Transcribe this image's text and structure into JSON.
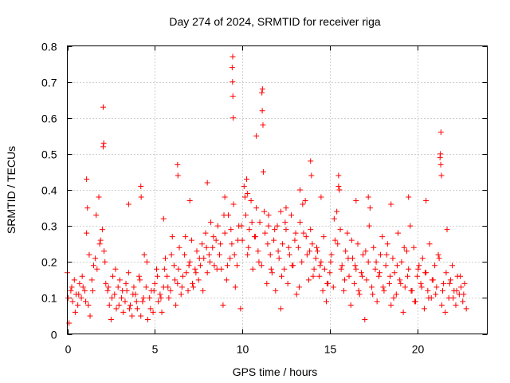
{
  "chart_data": {
    "type": "scatter",
    "title": "Day 274 of 2024, SRMTID for receiver riga",
    "xlabel": "GPS time / hours",
    "ylabel": "SRMTID / TECUs",
    "xlim": [
      0,
      24
    ],
    "ylim": [
      0,
      0.8
    ],
    "xticks": [
      0,
      5,
      10,
      15,
      20
    ],
    "yticks": [
      0,
      0.1,
      0.2,
      0.3,
      0.4,
      0.5,
      0.6,
      0.7,
      0.8
    ],
    "xtick_labels": [
      "0",
      "5",
      "10",
      "15",
      "20"
    ],
    "ytick_labels": [
      "0",
      "0.1",
      "0.2",
      "0.3",
      "0.4",
      "0.5",
      "0.6",
      "0.7",
      "0.8"
    ],
    "grid": true,
    "marker": "+",
    "color": "#ff0000",
    "series": [
      {
        "name": "SRMTID",
        "x": [
          0.0,
          0.1,
          0.2,
          0.3,
          0.4,
          0.5,
          0.6,
          0.7,
          0.8,
          0.9,
          1.0,
          1.1,
          1.2,
          1.3,
          1.4,
          1.5,
          1.6,
          1.7,
          1.8,
          1.9,
          2.0,
          2.05,
          2.1,
          2.2,
          2.3,
          2.4,
          2.5,
          2.6,
          2.7,
          2.8,
          2.9,
          3.0,
          3.1,
          3.2,
          3.3,
          3.4,
          3.5,
          3.6,
          3.7,
          3.8,
          3.9,
          4.0,
          4.1,
          4.2,
          4.3,
          4.4,
          4.5,
          4.6,
          4.7,
          4.8,
          4.9,
          5.0,
          5.1,
          5.2,
          5.3,
          5.4,
          5.5,
          5.6,
          5.7,
          5.8,
          5.9,
          6.0,
          6.1,
          6.2,
          6.3,
          6.4,
          6.5,
          6.6,
          6.7,
          6.8,
          6.9,
          7.0,
          7.1,
          7.2,
          7.3,
          7.4,
          7.5,
          7.6,
          7.7,
          7.8,
          7.9,
          8.0,
          8.1,
          8.2,
          8.3,
          8.4,
          8.5,
          8.6,
          8.7,
          8.8,
          8.9,
          9.0,
          9.1,
          9.2,
          9.3,
          9.4,
          9.45,
          9.5,
          9.6,
          9.7,
          9.8,
          9.9,
          10.0,
          10.1,
          10.2,
          10.3,
          10.4,
          10.5,
          10.6,
          10.7,
          10.8,
          10.9,
          11.0,
          11.1,
          11.15,
          11.2,
          11.3,
          11.4,
          11.5,
          11.6,
          11.7,
          11.8,
          11.9,
          12.0,
          12.1,
          12.2,
          12.3,
          12.4,
          12.5,
          12.6,
          12.7,
          12.8,
          12.9,
          13.0,
          13.1,
          13.2,
          13.3,
          13.4,
          13.5,
          13.6,
          13.7,
          13.8,
          13.9,
          14.0,
          14.1,
          14.2,
          14.3,
          14.4,
          14.5,
          14.6,
          14.7,
          14.8,
          14.9,
          15.0,
          15.1,
          15.2,
          15.3,
          15.4,
          15.5,
          15.6,
          15.7,
          15.8,
          15.9,
          16.0,
          16.1,
          16.2,
          16.3,
          16.4,
          16.5,
          16.6,
          16.7,
          16.8,
          16.9,
          17.0,
          17.1,
          17.2,
          17.3,
          17.4,
          17.5,
          17.6,
          17.7,
          17.8,
          17.9,
          18.0,
          18.1,
          18.2,
          18.3,
          18.4,
          18.5,
          18.6,
          18.7,
          18.8,
          18.9,
          19.0,
          19.1,
          19.2,
          19.3,
          19.4,
          19.5,
          19.6,
          19.7,
          19.8,
          19.9,
          20.0,
          20.1,
          20.2,
          20.3,
          20.4,
          20.5,
          20.6,
          20.7,
          20.8,
          20.9,
          21.0,
          21.1,
          21.2,
          21.3,
          21.35,
          21.4,
          21.5,
          21.6,
          21.7,
          21.8,
          21.9,
          22.0,
          22.1,
          22.2,
          22.3,
          22.4,
          22.5,
          22.6,
          22.7,
          22.8,
          0.05,
          0.25,
          0.45,
          0.65,
          0.85,
          1.05,
          1.25,
          1.45,
          1.65,
          1.85,
          2.15,
          2.35,
          2.55,
          2.75,
          2.95,
          3.15,
          3.35,
          3.55,
          3.75,
          3.95,
          4.15,
          4.35,
          4.55,
          4.75,
          4.95,
          5.15,
          5.35,
          5.55,
          5.75,
          5.95,
          6.15,
          6.35,
          6.55,
          6.75,
          6.95,
          7.15,
          7.35,
          7.55,
          7.75,
          7.95,
          8.15,
          8.35,
          8.55,
          8.75,
          8.95,
          9.15,
          9.35,
          9.55,
          9.75,
          9.95,
          10.15,
          10.35,
          10.55,
          10.75,
          10.95,
          11.25,
          11.45,
          11.65,
          11.85,
          12.05,
          12.25,
          12.45,
          12.65,
          12.85,
          13.05,
          13.25,
          13.45,
          13.65,
          13.85,
          14.05,
          14.25,
          14.45,
          14.65,
          14.85,
          15.05,
          15.25,
          15.45,
          15.65,
          15.85,
          16.05,
          16.25,
          16.45,
          16.65,
          16.85,
          17.05,
          17.25,
          17.45,
          17.65,
          17.85,
          18.05,
          18.25,
          18.45,
          18.65,
          18.85,
          19.05,
          19.25,
          19.45,
          19.65,
          19.85,
          20.05,
          20.25,
          20.45,
          20.65,
          20.85,
          21.05,
          21.25,
          21.45,
          21.65,
          21.85,
          22.05,
          22.25,
          22.45,
          22.65,
          2.05,
          2.08,
          9.42,
          9.44,
          9.46,
          9.48,
          11.12,
          11.14,
          11.18,
          21.32,
          21.34,
          21.38,
          6.3,
          6.32,
          4.2,
          4.22,
          13.9,
          13.95,
          15.5,
          15.55,
          10.25,
          10.3,
          1.1,
          1.15,
          7.0,
          8.0,
          12.5,
          14.5,
          16.5,
          18.5,
          19.5,
          20.5,
          3.5,
          5.5,
          9.0,
          10.8,
          11.5,
          12.2,
          13.3,
          17.2
        ],
        "y": [
          0.17,
          0.03,
          0.12,
          0.09,
          0.15,
          0.11,
          0.08,
          0.14,
          0.1,
          0.13,
          0.12,
          0.28,
          0.08,
          0.05,
          0.15,
          0.19,
          0.21,
          0.18,
          0.38,
          0.26,
          0.29,
          0.52,
          0.23,
          0.14,
          0.12,
          0.08,
          0.04,
          0.16,
          0.11,
          0.07,
          0.13,
          0.15,
          0.1,
          0.06,
          0.09,
          0.12,
          0.17,
          0.08,
          0.05,
          0.13,
          0.11,
          0.07,
          0.16,
          0.05,
          0.09,
          0.22,
          0.13,
          0.04,
          0.1,
          0.12,
          0.06,
          0.14,
          0.18,
          0.09,
          0.11,
          0.06,
          0.13,
          0.21,
          0.16,
          0.1,
          0.12,
          0.27,
          0.19,
          0.08,
          0.14,
          0.24,
          0.11,
          0.16,
          0.22,
          0.17,
          0.12,
          0.2,
          0.26,
          0.13,
          0.18,
          0.23,
          0.15,
          0.19,
          0.25,
          0.21,
          0.28,
          0.17,
          0.22,
          0.31,
          0.24,
          0.19,
          0.26,
          0.3,
          0.22,
          0.18,
          0.08,
          0.28,
          0.15,
          0.33,
          0.21,
          0.25,
          0.77,
          0.36,
          0.13,
          0.19,
          0.3,
          0.07,
          0.26,
          0.41,
          0.33,
          0.22,
          0.29,
          0.37,
          0.18,
          0.27,
          0.35,
          0.23,
          0.31,
          0.19,
          0.68,
          0.45,
          0.28,
          0.14,
          0.33,
          0.22,
          0.17,
          0.26,
          0.12,
          0.3,
          0.21,
          0.07,
          0.25,
          0.18,
          0.29,
          0.14,
          0.22,
          0.33,
          0.19,
          0.26,
          0.11,
          0.24,
          0.31,
          0.2,
          0.28,
          0.37,
          0.22,
          0.15,
          0.29,
          0.25,
          0.18,
          0.21,
          0.23,
          0.16,
          0.2,
          0.12,
          0.18,
          0.09,
          0.14,
          0.17,
          0.22,
          0.13,
          0.26,
          0.34,
          0.41,
          0.29,
          0.19,
          0.12,
          0.23,
          0.28,
          0.16,
          0.08,
          0.21,
          0.14,
          0.18,
          0.25,
          0.11,
          0.17,
          0.22,
          0.04,
          0.15,
          0.2,
          0.35,
          0.13,
          0.24,
          0.18,
          0.09,
          0.16,
          0.22,
          0.27,
          0.12,
          0.19,
          0.25,
          0.14,
          0.08,
          0.21,
          0.17,
          0.11,
          0.28,
          0.15,
          0.2,
          0.06,
          0.13,
          0.23,
          0.18,
          0.3,
          0.12,
          0.24,
          0.09,
          0.16,
          0.19,
          0.14,
          0.21,
          0.07,
          0.17,
          0.12,
          0.25,
          0.1,
          0.15,
          0.19,
          0.13,
          0.22,
          0.49,
          0.56,
          0.08,
          0.14,
          0.06,
          0.29,
          0.1,
          0.15,
          0.19,
          0.12,
          0.08,
          0.16,
          0.11,
          0.13,
          0.09,
          0.14,
          0.07,
          0.1,
          0.13,
          0.06,
          0.11,
          0.16,
          0.09,
          0.22,
          0.12,
          0.33,
          0.25,
          0.2,
          0.13,
          0.1,
          0.18,
          0.08,
          0.12,
          0.14,
          0.07,
          0.11,
          0.09,
          0.15,
          0.1,
          0.2,
          0.07,
          0.12,
          0.16,
          0.1,
          0.18,
          0.13,
          0.22,
          0.15,
          0.18,
          0.13,
          0.27,
          0.19,
          0.14,
          0.17,
          0.21,
          0.12,
          0.24,
          0.2,
          0.27,
          0.18,
          0.25,
          0.33,
          0.19,
          0.29,
          0.22,
          0.26,
          0.3,
          0.38,
          0.24,
          0.31,
          0.27,
          0.2,
          0.34,
          0.25,
          0.18,
          0.29,
          0.23,
          0.16,
          0.31,
          0.24,
          0.19,
          0.28,
          0.13,
          0.36,
          0.27,
          0.23,
          0.16,
          0.24,
          0.19,
          0.27,
          0.14,
          0.2,
          0.32,
          0.25,
          0.18,
          0.15,
          0.21,
          0.26,
          0.19,
          0.12,
          0.16,
          0.23,
          0.3,
          0.11,
          0.2,
          0.17,
          0.13,
          0.22,
          0.16,
          0.1,
          0.19,
          0.14,
          0.24,
          0.16,
          0.12,
          0.09,
          0.18,
          0.13,
          0.17,
          0.1,
          0.15,
          0.11,
          0.21,
          0.12,
          0.17,
          0.14,
          0.1,
          0.12,
          0.16,
          0.11,
          0.63,
          0.53,
          0.74,
          0.7,
          0.66,
          0.6,
          0.67,
          0.62,
          0.58,
          0.5,
          0.47,
          0.44,
          0.47,
          0.44,
          0.41,
          0.38,
          0.48,
          0.44,
          0.44,
          0.4,
          0.43,
          0.39,
          0.43,
          0.35,
          0.37,
          0.42,
          0.35,
          0.38,
          0.37,
          0.36,
          0.38,
          0.37,
          0.36,
          0.32,
          0.38,
          0.55,
          0.3,
          0.34,
          0.4,
          0.38
        ]
      }
    ]
  }
}
